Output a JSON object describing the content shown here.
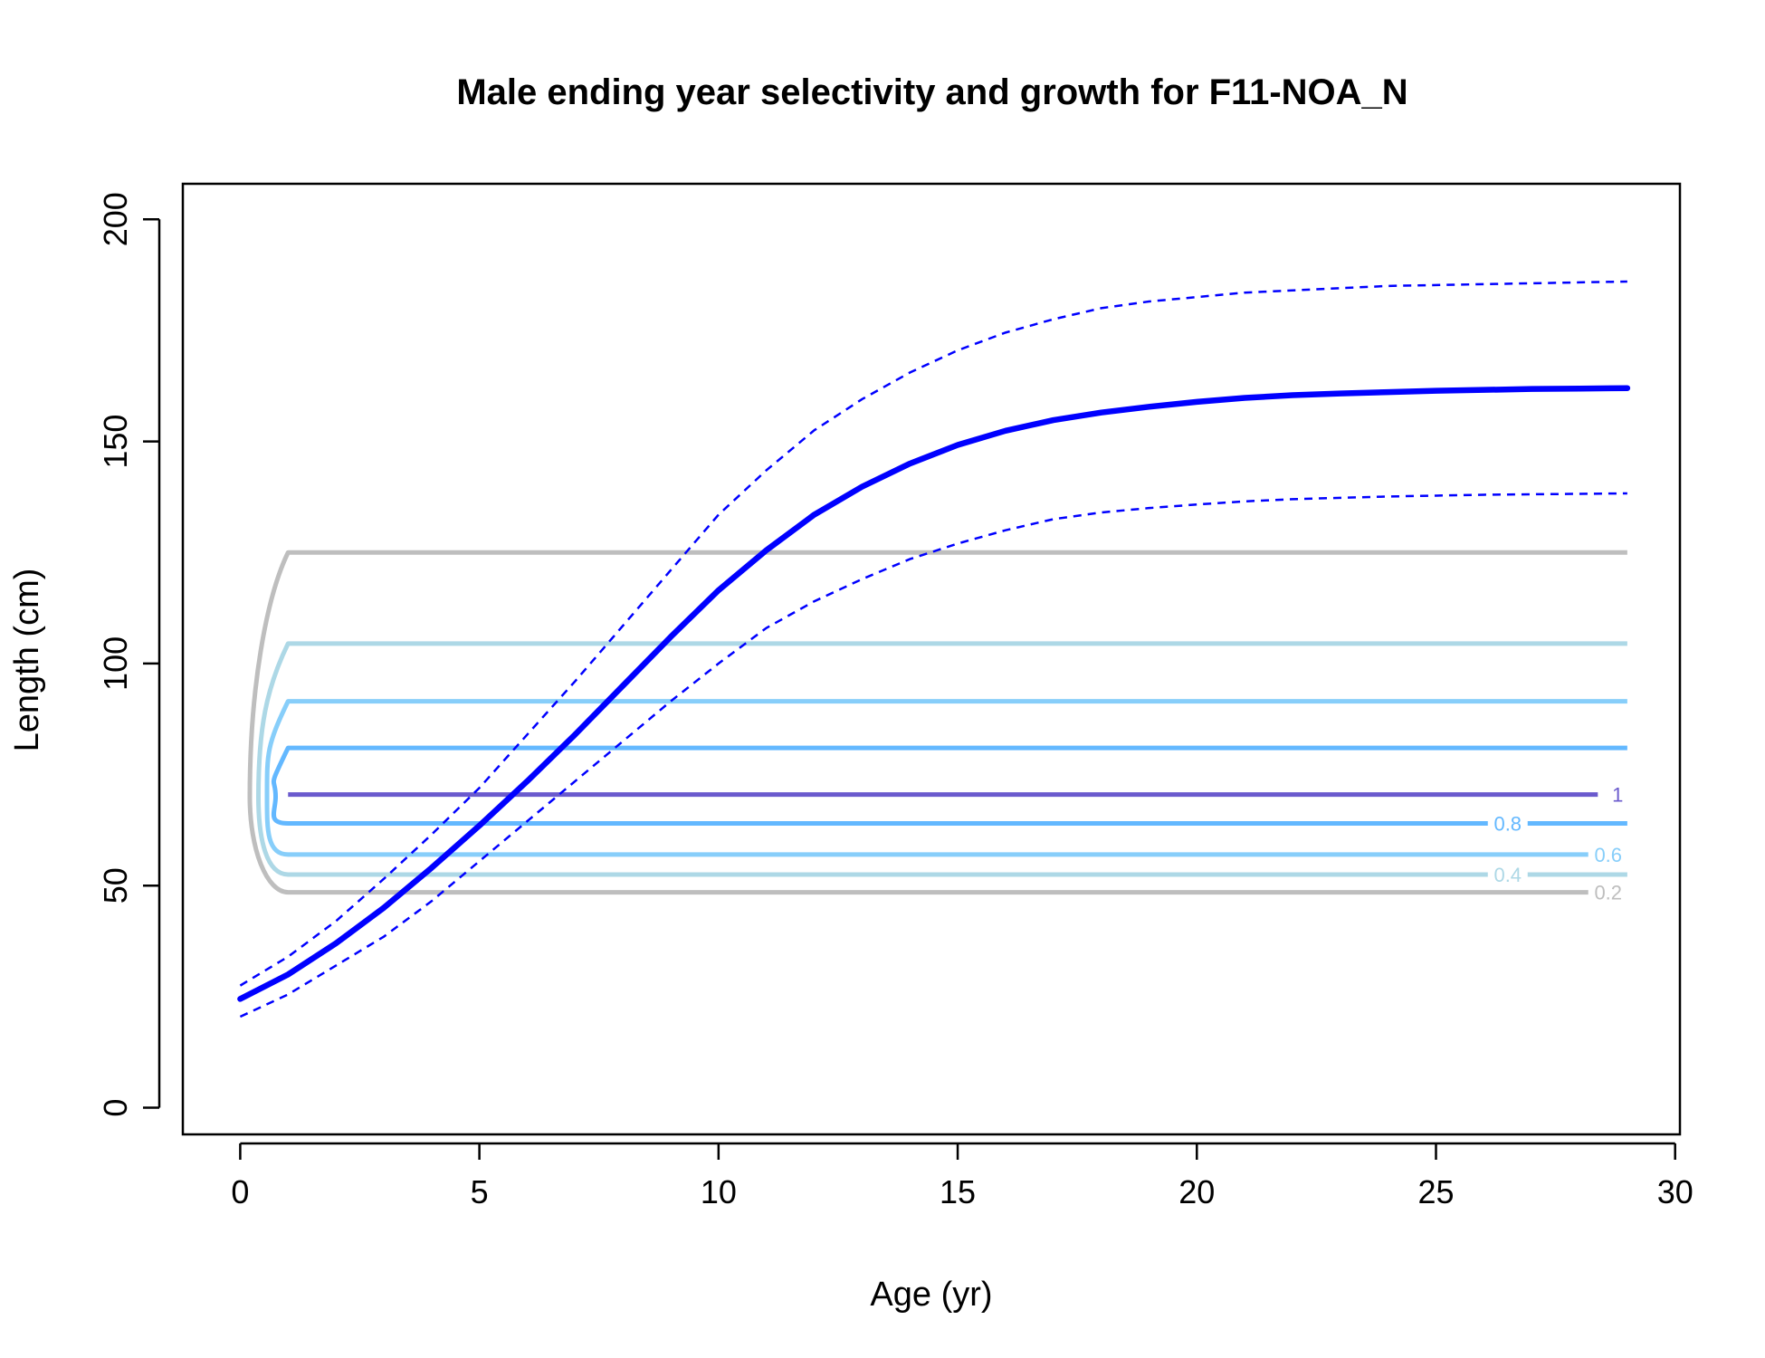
{
  "chart_data": {
    "type": "line",
    "title": "Male ending year selectivity and growth for F11-NOA_N",
    "xlabel": "Age (yr)",
    "ylabel": "Length (cm)",
    "xlim": [
      -1.2,
      30.1
    ],
    "ylim": [
      -6,
      208
    ],
    "x_ticks": [
      "0",
      "5",
      "10",
      "15",
      "20",
      "25",
      "30"
    ],
    "y_ticks": [
      "0",
      "50",
      "100",
      "150",
      "200"
    ],
    "grid": false,
    "legend": "none",
    "colors": {
      "mean": "#0000ff",
      "ci": "#0000ff",
      "contour_0_2": "#bebebe",
      "contour_0_4": "#add8e6",
      "contour_0_6": "#87cefa",
      "contour_0_8": "#63b8ff",
      "contour_1": "#6a5acd"
    },
    "growth": {
      "age": [
        0,
        1,
        2,
        3,
        4,
        5,
        6,
        7,
        8,
        9,
        10,
        11,
        12,
        13,
        14,
        15,
        16,
        17,
        18,
        19,
        20,
        21,
        22,
        23,
        24,
        25,
        26,
        27,
        28,
        29
      ],
      "mean": [
        24.5,
        30,
        37,
        45,
        54,
        63.5,
        73.5,
        84,
        95,
        106,
        116.5,
        125.5,
        133.5,
        139.8,
        145,
        149.2,
        152.4,
        154.8,
        156.5,
        157.8,
        158.9,
        159.8,
        160.4,
        160.8,
        161.1,
        161.4,
        161.6,
        161.8,
        161.9,
        162
      ],
      "upper": [
        27.5,
        34,
        42,
        51.5,
        61.5,
        72,
        84,
        96,
        108.5,
        121,
        133.5,
        143.5,
        152.5,
        159.5,
        165.5,
        170.5,
        174.5,
        177.5,
        180,
        181.5,
        182.5,
        183.5,
        184,
        184.5,
        185,
        185.2,
        185.4,
        185.6,
        185.8,
        186
      ],
      "lower": [
        20.5,
        25.5,
        32,
        38.5,
        46.5,
        55.5,
        64.5,
        73.5,
        82.5,
        91.5,
        100,
        108,
        114,
        119,
        123.5,
        127,
        130,
        132.5,
        134,
        135,
        135.8,
        136.5,
        137,
        137.3,
        137.6,
        137.8,
        138,
        138.1,
        138.2,
        138.3
      ]
    },
    "selectivity_contours": [
      {
        "level": "0.2",
        "color": "#bebebe",
        "upper": 125,
        "lower": 48.5,
        "label": "0.2",
        "label_y": 48.5
      },
      {
        "level": "0.4",
        "color": "#add8e6",
        "upper": 104.5,
        "lower": 52.5,
        "label": "0.4",
        "label_y": 52.5
      },
      {
        "level": "0.6",
        "color": "#87cefa",
        "upper": 91.5,
        "lower": 57,
        "label": "0.6",
        "label_y": 57
      },
      {
        "level": "0.8",
        "color": "#63b8ff",
        "upper": 81,
        "lower": 64,
        "label": "0.8",
        "label_y": 64
      },
      {
        "level": "1",
        "color": "#6a5acd",
        "upper": 70.5,
        "lower": 70.5,
        "label": "1",
        "label_y": 70.5
      }
    ]
  }
}
